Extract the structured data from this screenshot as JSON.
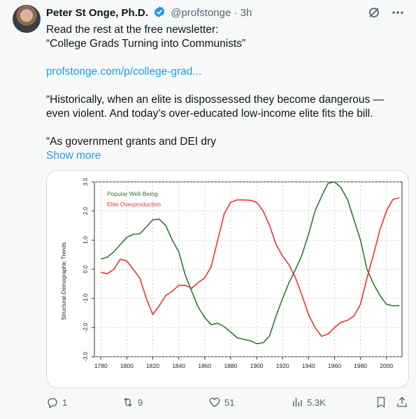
{
  "author": {
    "name": "Peter St Onge, Ph.D.",
    "handle": "@profstonge",
    "time": "3h"
  },
  "post": {
    "line1": "Read the rest at the free newsletter:",
    "line2": "“College Grads Turning into Communists”",
    "link": "profstonge.com/p/college-grad...",
    "para1_a": "“Historically, when an elite is dispossessed they become dangerous —",
    "para1_b": "even violent. And today’s over-educated low-income elite fits the bill.",
    "para2": "“As government grants and DEI dry",
    "show_more": "Show more"
  },
  "actions": {
    "replies": "1",
    "reposts": "9",
    "likes": "51",
    "views": "5.3K"
  },
  "colors": {
    "accent": "#1d9bf0",
    "popular": "#2d7a2d",
    "elite": "#ee3333"
  },
  "chart_data": {
    "type": "line",
    "ylabel": "Structural-Demographic Trends",
    "xlim": [
      1775,
      2012
    ],
    "ylim": [
      -3.0,
      3.0
    ],
    "x_ticks": [
      "1780",
      "1800",
      "1820",
      "1840",
      "1860",
      "1880",
      "1900",
      "1920",
      "1940",
      "1960",
      "1980",
      "2000"
    ],
    "y_ticks": [
      "-3.0",
      "-2.0",
      "-1.0",
      "0.0",
      "1.0",
      "2.0",
      "3.0"
    ],
    "series": [
      {
        "name": "Popular Well-Being",
        "color": "#2d7a2d",
        "x": [
          1780,
          1785,
          1790,
          1795,
          1800,
          1805,
          1810,
          1815,
          1820,
          1825,
          1830,
          1835,
          1840,
          1845,
          1850,
          1855,
          1860,
          1865,
          1870,
          1875,
          1880,
          1885,
          1890,
          1895,
          1900,
          1905,
          1910,
          1915,
          1920,
          1925,
          1930,
          1935,
          1940,
          1945,
          1950,
          1955,
          1960,
          1965,
          1970,
          1975,
          1980,
          1985,
          1990,
          1995,
          2000,
          2005,
          2010
        ],
        "y": [
          0.35,
          0.42,
          0.6,
          0.85,
          1.1,
          1.2,
          1.22,
          1.45,
          1.7,
          1.72,
          1.5,
          1.0,
          0.6,
          -0.2,
          -0.75,
          -1.3,
          -1.65,
          -1.9,
          -1.85,
          -1.97,
          -2.15,
          -2.35,
          -2.4,
          -2.45,
          -2.55,
          -2.52,
          -2.28,
          -1.6,
          -1.0,
          -0.45,
          0.0,
          0.5,
          1.2,
          2.0,
          2.5,
          2.95,
          3.0,
          2.8,
          2.4,
          1.7,
          1.0,
          0.0,
          -0.5,
          -0.9,
          -1.2,
          -1.25,
          -1.25
        ]
      },
      {
        "name": "Elite Overproduction",
        "color": "#ee3333",
        "x": [
          1780,
          1785,
          1790,
          1795,
          1800,
          1805,
          1810,
          1815,
          1820,
          1825,
          1830,
          1835,
          1840,
          1845,
          1850,
          1855,
          1860,
          1865,
          1870,
          1875,
          1880,
          1885,
          1890,
          1895,
          1900,
          1905,
          1910,
          1915,
          1920,
          1925,
          1930,
          1935,
          1940,
          1945,
          1950,
          1955,
          1960,
          1965,
          1970,
          1975,
          1980,
          1985,
          1990,
          1995,
          2000,
          2005,
          2010
        ],
        "y": [
          -0.1,
          -0.15,
          0.0,
          0.35,
          0.28,
          0.0,
          -0.3,
          -1.0,
          -1.55,
          -1.25,
          -0.9,
          -0.75,
          -0.55,
          -0.55,
          -0.65,
          -0.45,
          -0.3,
          0.1,
          1.0,
          1.9,
          2.3,
          2.38,
          2.38,
          2.37,
          2.3,
          2.0,
          1.5,
          0.85,
          0.45,
          0.15,
          -0.3,
          -0.9,
          -1.55,
          -2.0,
          -2.3,
          -2.22,
          -2.0,
          -1.82,
          -1.75,
          -1.6,
          -1.2,
          -0.3,
          0.5,
          1.35,
          2.0,
          2.4,
          2.45
        ]
      }
    ]
  }
}
